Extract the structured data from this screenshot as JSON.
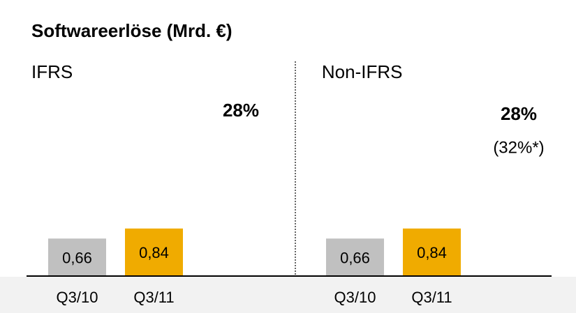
{
  "title": "Softwareerlöse (Mrd. €)",
  "chart_data": [
    {
      "type": "bar",
      "title": "IFRS",
      "categories": [
        "Q3/10",
        "Q3/11"
      ],
      "values": [
        0.66,
        0.84
      ],
      "value_labels": [
        "0,66",
        "0,84"
      ],
      "colors": [
        "#c0c0c0",
        "#f0ab00"
      ],
      "ylim": [
        0,
        3.5
      ],
      "annotations": [
        "28%"
      ]
    },
    {
      "type": "bar",
      "title": "Non-IFRS",
      "categories": [
        "Q3/10",
        "Q3/11"
      ],
      "values": [
        0.66,
        0.84
      ],
      "value_labels": [
        "0,66",
        "0,84"
      ],
      "colors": [
        "#c0c0c0",
        "#f0ab00"
      ],
      "ylim": [
        0,
        3.5
      ],
      "annotations": [
        "28%",
        "(32%*)"
      ]
    }
  ]
}
